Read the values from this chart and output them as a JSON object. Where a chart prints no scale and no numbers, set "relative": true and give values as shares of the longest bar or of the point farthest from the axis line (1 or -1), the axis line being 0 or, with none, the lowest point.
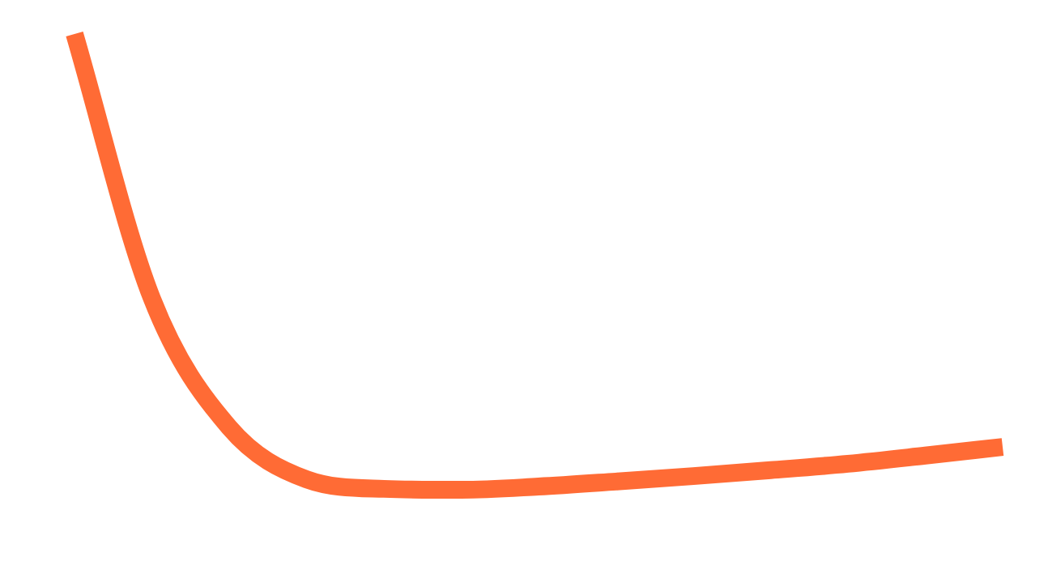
{
  "chart_data": {
    "type": "line",
    "relative": true,
    "categories": [
      null,
      null,
      null,
      null,
      null,
      null,
      null,
      null,
      null,
      null,
      null,
      null,
      null
    ],
    "series": [
      {
        "color": "#ff6b35",
        "values": [
          1,
          0.42,
          0.137,
          0.023,
          0.002,
          0,
          0.007,
          0.018,
          0.03,
          0.043,
          0.057,
          0.075,
          0.094
        ]
      }
    ],
    "marker": "none",
    "line_style": "solid",
    "legend": false
  }
}
